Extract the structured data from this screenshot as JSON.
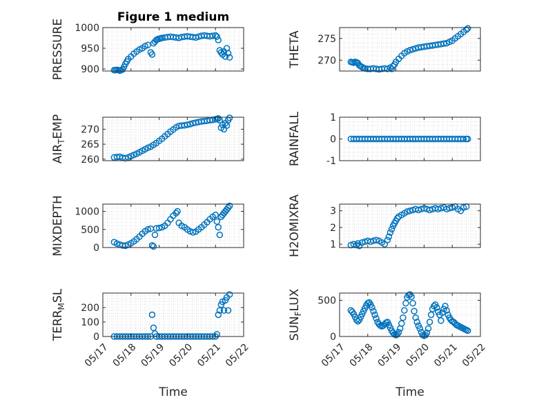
{
  "figure": {
    "title": "Figure 1 medium",
    "xlabel": "Time",
    "xticklabels": [
      "05/17",
      "05/18",
      "05/19",
      "05/20",
      "05/21",
      "05/22"
    ],
    "marker_color": "#0072BD",
    "grid": "minor dotted"
  },
  "chart_data": [
    {
      "type": "scatter",
      "ylabel": "PRESSURE",
      "ylim": [
        895,
        1000
      ],
      "yticks": [
        900,
        950,
        1000
      ],
      "x": [
        0.4,
        0.45,
        0.5,
        0.55,
        0.6,
        0.65,
        0.7,
        0.75,
        0.8,
        0.85,
        0.9,
        1.0,
        1.1,
        1.2,
        1.3,
        1.4,
        1.5,
        1.6,
        1.7,
        1.75,
        1.8,
        1.85,
        1.9,
        1.95,
        2.0,
        2.05,
        2.1,
        2.2,
        2.3,
        2.4,
        2.5,
        2.6,
        2.7,
        2.8,
        2.9,
        3.0,
        3.1,
        3.2,
        3.3,
        3.4,
        3.5,
        3.6,
        3.7,
        3.8,
        3.9,
        4.0,
        4.05,
        4.1,
        4.15,
        4.2,
        4.25,
        4.3,
        4.35,
        4.4,
        4.45,
        4.5
      ],
      "y": [
        897,
        897,
        898,
        897,
        896,
        897,
        899,
        905,
        912,
        918,
        924,
        930,
        937,
        942,
        947,
        950,
        955,
        958,
        940,
        935,
        962,
        966,
        970,
        972,
        973,
        974,
        975,
        976,
        977,
        978,
        977,
        976,
        975,
        977,
        978,
        979,
        978,
        977,
        976,
        978,
        980,
        981,
        980,
        979,
        980,
        981,
        978,
        970,
        945,
        940,
        935,
        942,
        930,
        950,
        938,
        928
      ]
    },
    {
      "type": "scatter",
      "ylabel": "THETA",
      "ylim": [
        267.5,
        277.5
      ],
      "yticks": [
        270,
        275
      ],
      "x": [
        0.4,
        0.45,
        0.5,
        0.55,
        0.6,
        0.65,
        0.7,
        0.75,
        0.8,
        0.85,
        0.9,
        1.0,
        1.1,
        1.2,
        1.3,
        1.4,
        1.5,
        1.6,
        1.7,
        1.8,
        1.85,
        1.9,
        1.95,
        2.0,
        2.1,
        2.2,
        2.3,
        2.4,
        2.5,
        2.6,
        2.7,
        2.8,
        2.9,
        3.0,
        3.1,
        3.2,
        3.3,
        3.4,
        3.5,
        3.6,
        3.7,
        3.8,
        3.9,
        4.0,
        4.1,
        4.2,
        4.3,
        4.4,
        4.5,
        4.55
      ],
      "y": [
        269.6,
        269.5,
        269.4,
        269.6,
        269.5,
        269.3,
        268.8,
        268.6,
        268.4,
        268.2,
        268.1,
        268.0,
        268.0,
        268.1,
        268.0,
        267.9,
        268.0,
        268.1,
        268.0,
        268.3,
        268.0,
        268.6,
        269.0,
        269.6,
        270.3,
        271.0,
        271.6,
        272.0,
        272.3,
        272.5,
        272.7,
        272.9,
        273.0,
        273.1,
        273.2,
        273.3,
        273.4,
        273.5,
        273.6,
        273.7,
        273.8,
        273.9,
        274.2,
        274.5,
        275.0,
        275.5,
        276.0,
        276.5,
        277.0,
        277.3
      ]
    },
    {
      "type": "scatter",
      "ylabel": "AIR_TEMP",
      "ylim": [
        259.5,
        274
      ],
      "yticks": [
        260,
        265,
        270
      ],
      "x": [
        0.4,
        0.5,
        0.6,
        0.7,
        0.8,
        0.9,
        1.0,
        1.1,
        1.2,
        1.3,
        1.4,
        1.5,
        1.6,
        1.7,
        1.8,
        1.9,
        2.0,
        2.1,
        2.2,
        2.3,
        2.4,
        2.5,
        2.6,
        2.7,
        2.8,
        2.9,
        3.0,
        3.1,
        3.2,
        3.3,
        3.4,
        3.5,
        3.6,
        3.7,
        3.8,
        3.9,
        4.0,
        4.05,
        4.1,
        4.15,
        4.2,
        4.25,
        4.3,
        4.35,
        4.4,
        4.45,
        4.5
      ],
      "y": [
        260.6,
        260.7,
        260.8,
        260.5,
        260.3,
        260.6,
        261.0,
        261.4,
        261.8,
        262.3,
        262.8,
        263.3,
        263.8,
        264.2,
        264.8,
        265.4,
        266.1,
        266.8,
        267.6,
        268.4,
        269.2,
        269.9,
        270.6,
        271.1,
        271.2,
        271.3,
        271.5,
        271.7,
        272.0,
        272.2,
        272.4,
        272.6,
        272.7,
        272.8,
        273.0,
        273.1,
        273.3,
        273.4,
        273.6,
        273.0,
        270.5,
        271.5,
        270.0,
        272.0,
        271.2,
        273.0,
        273.8
      ]
    },
    {
      "type": "scatter",
      "ylabel": "RAINFALL",
      "ylim": [
        -1,
        1
      ],
      "yticks": [
        -1,
        0,
        1
      ],
      "x": [
        0.4,
        0.5,
        0.6,
        0.7,
        0.8,
        0.9,
        1.0,
        1.1,
        1.2,
        1.3,
        1.4,
        1.5,
        1.6,
        1.7,
        1.8,
        1.9,
        2.0,
        2.1,
        2.2,
        2.3,
        2.4,
        2.5,
        2.6,
        2.7,
        2.8,
        2.9,
        3.0,
        3.1,
        3.2,
        3.3,
        3.4,
        3.5,
        3.6,
        3.7,
        3.8,
        3.9,
        4.0,
        4.1,
        4.2,
        4.3,
        4.4,
        4.5,
        4.55
      ],
      "y": [
        0,
        0,
        0,
        0,
        0,
        0,
        0,
        0,
        0,
        0,
        0,
        0,
        0,
        0,
        0,
        0,
        0,
        0,
        0,
        0,
        0,
        0,
        0,
        0,
        0,
        0,
        0,
        0,
        0,
        0,
        0,
        0,
        0,
        0,
        0,
        0,
        0,
        0,
        0,
        0,
        0,
        0,
        0
      ]
    },
    {
      "type": "scatter",
      "ylabel": "MIXDEPTH",
      "ylim": [
        0,
        1200
      ],
      "yticks": [
        0,
        500,
        1000
      ],
      "x": [
        0.4,
        0.5,
        0.6,
        0.7,
        0.8,
        0.9,
        1.0,
        1.1,
        1.2,
        1.3,
        1.4,
        1.5,
        1.6,
        1.7,
        1.75,
        1.8,
        1.85,
        1.9,
        2.0,
        2.1,
        2.2,
        2.3,
        2.4,
        2.5,
        2.6,
        2.65,
        2.7,
        2.8,
        2.9,
        3.0,
        3.1,
        3.2,
        3.3,
        3.4,
        3.5,
        3.6,
        3.7,
        3.8,
        3.9,
        4.0,
        4.05,
        4.1,
        4.15,
        4.2,
        4.25,
        4.3,
        4.35,
        4.4,
        4.45,
        4.5
      ],
      "y": [
        150,
        110,
        80,
        60,
        50,
        80,
        120,
        170,
        230,
        300,
        380,
        450,
        500,
        520,
        60,
        30,
        350,
        530,
        540,
        560,
        600,
        680,
        780,
        880,
        950,
        1000,
        680,
        600,
        560,
        500,
        450,
        420,
        440,
        500,
        560,
        630,
        700,
        780,
        850,
        900,
        720,
        560,
        350,
        850,
        900,
        950,
        1000,
        1050,
        1100,
        1150
      ]
    },
    {
      "type": "scatter",
      "ylabel": "H2OMIXRA",
      "ylim": [
        0.8,
        3.4
      ],
      "yticks": [
        1,
        2,
        3
      ],
      "x": [
        0.4,
        0.5,
        0.6,
        0.65,
        0.7,
        0.8,
        0.9,
        1.0,
        1.1,
        1.2,
        1.3,
        1.4,
        1.5,
        1.6,
        1.7,
        1.75,
        1.8,
        1.85,
        1.9,
        1.95,
        2.0,
        2.05,
        2.1,
        2.2,
        2.3,
        2.4,
        2.5,
        2.6,
        2.7,
        2.8,
        2.9,
        3.0,
        3.1,
        3.2,
        3.3,
        3.4,
        3.5,
        3.6,
        3.7,
        3.8,
        3.9,
        4.0,
        4.1,
        4.2,
        4.3,
        4.4,
        4.5
      ],
      "y": [
        0.95,
        1.0,
        0.95,
        1.05,
        0.9,
        1.1,
        1.15,
        1.2,
        1.15,
        1.2,
        1.25,
        1.2,
        1.1,
        1.0,
        1.25,
        1.45,
        1.7,
        1.9,
        2.1,
        2.25,
        2.4,
        2.55,
        2.65,
        2.75,
        2.85,
        2.95,
        3.0,
        3.05,
        3.1,
        3.05,
        3.1,
        3.15,
        3.1,
        3.05,
        3.1,
        3.15,
        3.1,
        3.15,
        3.2,
        3.1,
        3.15,
        3.2,
        3.25,
        3.1,
        3.0,
        3.2,
        3.25
      ]
    },
    {
      "type": "scatter",
      "ylabel": "TERR_MSL",
      "ylim": [
        0,
        300
      ],
      "yticks": [
        0,
        100,
        200
      ],
      "x": [
        0.4,
        0.5,
        0.6,
        0.7,
        0.8,
        0.9,
        1.0,
        1.1,
        1.2,
        1.3,
        1.4,
        1.5,
        1.6,
        1.7,
        1.75,
        1.8,
        1.85,
        1.9,
        2.0,
        2.1,
        2.2,
        2.3,
        2.4,
        2.5,
        2.6,
        2.7,
        2.8,
        2.9,
        3.0,
        3.1,
        3.2,
        3.3,
        3.4,
        3.5,
        3.6,
        3.7,
        3.8,
        3.9,
        4.0,
        4.05,
        4.1,
        4.15,
        4.2,
        4.25,
        4.3,
        4.35,
        4.4,
        4.45,
        4.5
      ],
      "y": [
        0,
        0,
        0,
        0,
        0,
        0,
        0,
        0,
        0,
        0,
        0,
        0,
        0,
        0,
        150,
        60,
        20,
        0,
        0,
        0,
        0,
        0,
        0,
        0,
        0,
        0,
        0,
        0,
        0,
        0,
        0,
        0,
        0,
        0,
        0,
        0,
        0,
        0,
        0,
        15,
        150,
        180,
        220,
        240,
        180,
        250,
        270,
        180,
        290
      ]
    },
    {
      "type": "scatter",
      "ylabel": "SUN_FLUX",
      "ylim": [
        0,
        600
      ],
      "yticks": [
        0,
        500
      ],
      "x": [
        0.4,
        0.45,
        0.5,
        0.55,
        0.6,
        0.65,
        0.7,
        0.75,
        0.8,
        0.85,
        0.9,
        0.95,
        1.0,
        1.05,
        1.1,
        1.15,
        1.2,
        1.25,
        1.3,
        1.35,
        1.4,
        1.45,
        1.5,
        1.55,
        1.6,
        1.65,
        1.7,
        1.75,
        1.8,
        1.85,
        1.9,
        1.95,
        2.0,
        2.05,
        2.1,
        2.15,
        2.2,
        2.25,
        2.3,
        2.35,
        2.4,
        2.45,
        2.5,
        2.55,
        2.6,
        2.65,
        2.7,
        2.75,
        2.8,
        2.85,
        2.9,
        2.95,
        3.0,
        3.05,
        3.1,
        3.15,
        3.2,
        3.25,
        3.3,
        3.35,
        3.4,
        3.45,
        3.5,
        3.55,
        3.6,
        3.65,
        3.7,
        3.75,
        3.8,
        3.85,
        3.9,
        3.95,
        4.0,
        4.05,
        4.1,
        4.15,
        4.2,
        4.25,
        4.3,
        4.35,
        4.4,
        4.45,
        4.5,
        4.55
      ],
      "y": [
        360,
        340,
        310,
        270,
        230,
        210,
        230,
        270,
        310,
        350,
        390,
        430,
        460,
        470,
        440,
        400,
        350,
        300,
        250,
        200,
        170,
        150,
        140,
        150,
        170,
        190,
        200,
        160,
        120,
        80,
        50,
        30,
        20,
        30,
        60,
        110,
        180,
        260,
        360,
        460,
        540,
        570,
        580,
        550,
        460,
        350,
        260,
        200,
        150,
        110,
        60,
        20,
        10,
        20,
        50,
        110,
        200,
        300,
        380,
        420,
        440,
        400,
        340,
        300,
        220,
        330,
        380,
        420,
        360,
        300,
        260,
        230,
        210,
        200,
        180,
        160,
        150,
        140,
        130,
        120,
        110,
        100,
        90,
        80
      ]
    }
  ]
}
